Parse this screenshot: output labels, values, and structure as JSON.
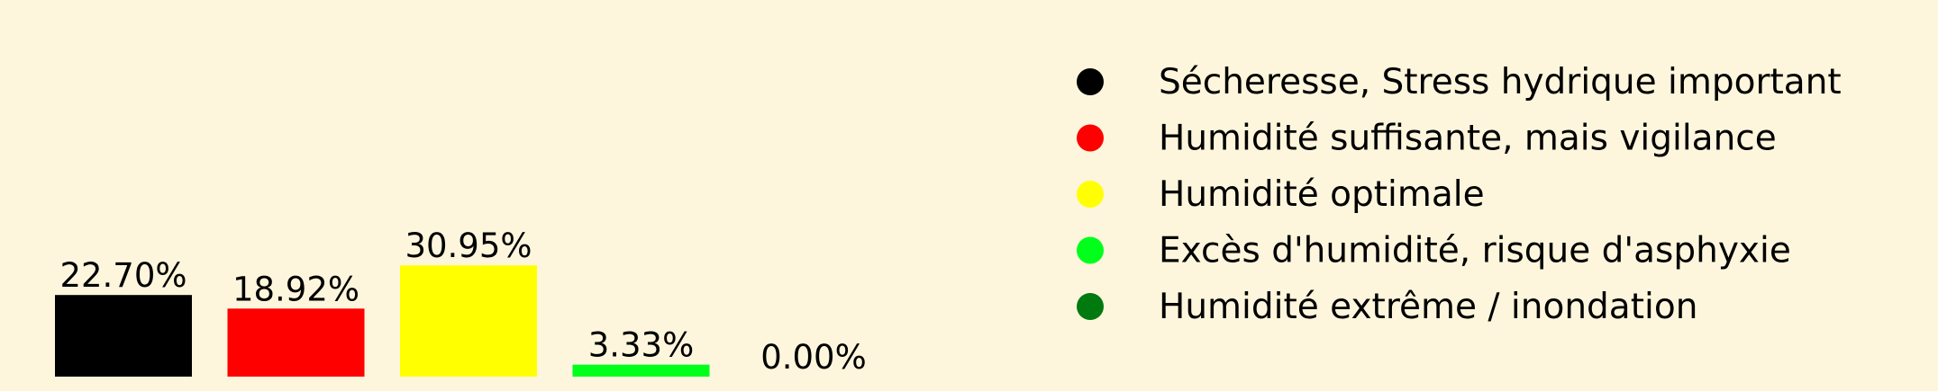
{
  "chart_data": {
    "type": "bar",
    "categories": [
      "Sécheresse, Stress hydrique important",
      "Humidité suffisante, mais vigilance",
      "Humidité optimale",
      "Excès d'humidité, risque d'asphyxie",
      "Humidité extrême / inondation"
    ],
    "values": [
      22.7,
      18.92,
      30.95,
      3.33,
      0.0
    ],
    "data_labels": [
      "22.70%",
      "18.92%",
      "30.95%",
      "3.33%",
      "0.00%"
    ],
    "colors": [
      "#000000",
      "#ff0000",
      "#ffff00",
      "#00ff1a",
      "#007a0e"
    ],
    "ylim": [
      0,
      100
    ],
    "unit": "%",
    "grid": false,
    "legend_position": "right",
    "background_color": "#fdf6dc"
  }
}
